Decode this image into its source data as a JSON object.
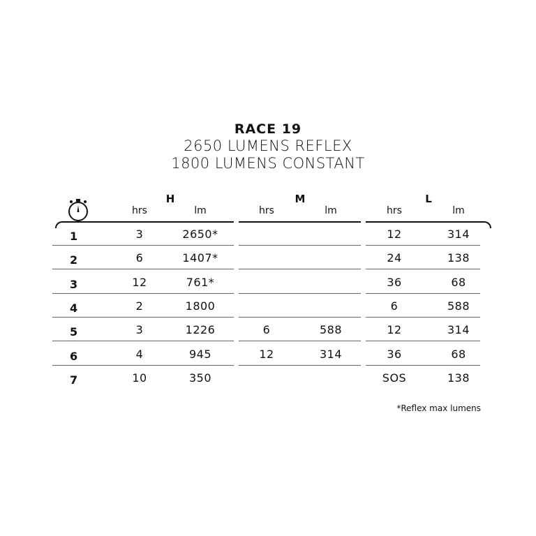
{
  "title": "RACE 19",
  "subtitle_1": "2650 LUMENS REFLEX",
  "subtitle_2": "1800 LUMENS CONSTANT",
  "icon": "stopwatch-icon",
  "groups": [
    {
      "label": "H",
      "cols": [
        "hrs",
        "lm"
      ]
    },
    {
      "label": "M",
      "cols": [
        "hrs",
        "lm"
      ]
    },
    {
      "label": "L",
      "cols": [
        "hrs",
        "lm"
      ]
    }
  ],
  "rows": [
    {
      "mode": "1",
      "cells": [
        "3",
        "2650*",
        "",
        "",
        "12",
        "314"
      ]
    },
    {
      "mode": "2",
      "cells": [
        "6",
        "1407*",
        "",
        "",
        "24",
        "138"
      ]
    },
    {
      "mode": "3",
      "cells": [
        "12",
        "761*",
        "",
        "",
        "36",
        "68"
      ]
    },
    {
      "mode": "4",
      "cells": [
        "2",
        "1800",
        "",
        "",
        "6",
        "588"
      ]
    },
    {
      "mode": "5",
      "cells": [
        "3",
        "1226",
        "6",
        "588",
        "12",
        "314"
      ]
    },
    {
      "mode": "6",
      "cells": [
        "4",
        "945",
        "12",
        "314",
        "36",
        "68"
      ]
    },
    {
      "mode": "7",
      "cells": [
        "10",
        "350",
        "",
        "",
        "SOS",
        "138"
      ]
    }
  ],
  "footnote": "*Reflex max lumens"
}
